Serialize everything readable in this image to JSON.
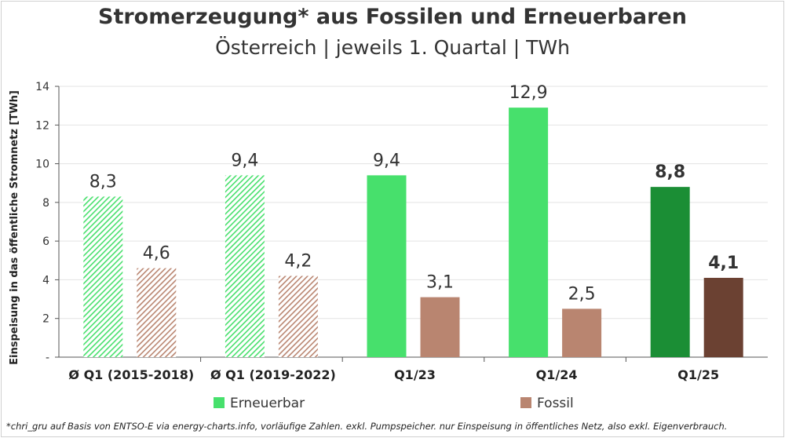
{
  "title": "Stromerzeugung* aus Fossilen und Erneuerbaren",
  "subtitle": "Österreich | jeweils 1. Quartal | TWh",
  "footnote": "*chri_gru auf Basis von ENTSO-E via energy-charts.info, vorläufige Zahlen. exkl. Pumpspeicher. nur Einspeisung in öffentliches Netz, also exkl. Eigenverbrauch.",
  "colors": {
    "erneuerbar": "#47e06c",
    "erneuerbar_hatch_bg": "#ffffff",
    "erneuerbar_dark": "#1b8e35",
    "fossil": "#b98570",
    "fossil_dark": "#6b4132",
    "grid": "#e3e3e3",
    "axis": "#555555"
  },
  "chart_data": {
    "type": "bar",
    "title": "Stromerzeugung* aus Fossilen und Erneuerbaren",
    "subtitle": "Österreich | jeweils 1. Quartal | TWh",
    "xlabel": "",
    "ylabel": "Einspeisung in das öffentliche Stromnetz [TWh]",
    "ylim": [
      0,
      14
    ],
    "yticks": [
      0,
      2,
      4,
      6,
      8,
      10,
      12,
      14
    ],
    "ytick_labels": [
      "-",
      "2",
      "4",
      "6",
      "8",
      "10",
      "12",
      "14"
    ],
    "grid": true,
    "legend_position": "bottom",
    "categories": [
      "Ø Q1 (2015-2018)",
      "Ø Q1 (2019-2022)",
      "Q1/23",
      "Q1/24",
      "Q1/25"
    ],
    "series": [
      {
        "name": "Erneuerbar",
        "values": [
          8.3,
          9.4,
          9.4,
          12.9,
          8.8
        ],
        "labels": [
          "8,3",
          "9,4",
          "9,4",
          "12,9",
          "8,8"
        ],
        "styles": [
          "hatched",
          "hatched",
          "solid",
          "solid",
          "dark"
        ]
      },
      {
        "name": "Fossil",
        "values": [
          4.6,
          4.2,
          3.1,
          2.5,
          4.1
        ],
        "labels": [
          "4,6",
          "4,2",
          "3,1",
          "2,5",
          "4,1"
        ],
        "styles": [
          "hatched",
          "hatched",
          "solid",
          "solid",
          "dark"
        ]
      }
    ]
  }
}
